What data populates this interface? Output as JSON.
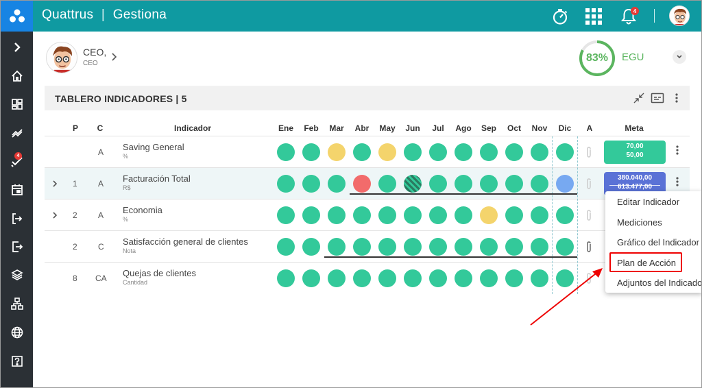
{
  "app": {
    "brand": "Quattrus",
    "module": "Gestiona",
    "title": "Quattrus | Gestiona",
    "notifications": "4"
  },
  "sidebar": {
    "badge": "4",
    "items": [
      "expand",
      "home",
      "dashboard",
      "indicators",
      "tasks",
      "calendar",
      "login",
      "logout",
      "layers",
      "org-chart",
      "globe",
      "help"
    ]
  },
  "user": {
    "name": "CEO,",
    "role": "CEO"
  },
  "kpi": {
    "value": "83%",
    "percent": 83,
    "label": "EGU",
    "color": "#5bb55f"
  },
  "board": {
    "title": "TABLERO INDICADORES | 5",
    "columns": {
      "p": "P",
      "c": "C",
      "indicator": "Indicador",
      "a": "A",
      "meta": "Meta"
    },
    "months": [
      "Ene",
      "Feb",
      "Mar",
      "Abr",
      "May",
      "Jun",
      "Jul",
      "Ago",
      "Sep",
      "Oct",
      "Nov",
      "Dic"
    ],
    "rows": [
      {
        "p": "",
        "c": "A",
        "name": "Saving General",
        "unit": "%",
        "statuses": [
          "g",
          "g",
          "y",
          "g",
          "y",
          "g",
          "g",
          "g",
          "g",
          "g",
          "g",
          "g"
        ],
        "meta_top": "70,00",
        "meta_bottom": "50,00",
        "meta_color": "#33c99a",
        "expandable": false
      },
      {
        "p": "1",
        "c": "A",
        "name": "Facturación Total",
        "unit": "R$",
        "statuses": [
          "g",
          "g",
          "g",
          "r",
          "g",
          "hatch",
          "g",
          "g",
          "g",
          "g",
          "g",
          "b"
        ],
        "meta_top": "380.040,00",
        "meta_bottom": "613.477,00",
        "meta_color": "#5a72d6",
        "expandable": true
      },
      {
        "p": "2",
        "c": "A",
        "name": "Economia",
        "unit": "%",
        "statuses": [
          "g",
          "g",
          "g",
          "g",
          "g",
          "g",
          "g",
          "g",
          "y",
          "g",
          "g",
          "g"
        ],
        "meta_top": "",
        "meta_bottom": "",
        "meta_color": "#33c99a",
        "expandable": true
      },
      {
        "p": "2",
        "c": "C",
        "name": "Satisfacción general de clientes",
        "unit": "Nota",
        "statuses": [
          "g",
          "g",
          "g",
          "g",
          "g",
          "g",
          "g",
          "g",
          "g",
          "g",
          "g",
          "g"
        ],
        "meta_top": "",
        "meta_bottom": "",
        "meta_color": "#33c99a",
        "expandable": false
      },
      {
        "p": "8",
        "c": "CA",
        "name": "Quejas de clientes",
        "unit": "Cantidad",
        "statuses": [
          "g",
          "g",
          "g",
          "g",
          "g",
          "g",
          "g",
          "g",
          "g",
          "g",
          "g",
          "g"
        ],
        "meta_top": "",
        "meta_bottom": "",
        "meta_color": "#33c99a",
        "expandable": false
      }
    ]
  },
  "menu": {
    "items": [
      "Editar Indicador",
      "Mediciones",
      "Gráfico del Indicador",
      "Plan de Acción",
      "Adjuntos del Indicador"
    ],
    "highlighted": "Plan de Acción"
  }
}
